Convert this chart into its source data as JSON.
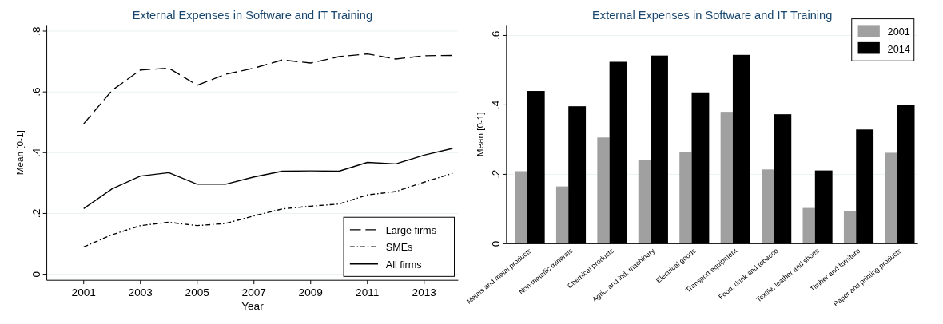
{
  "chart_data": [
    {
      "type": "line",
      "title": "External Expenses in Software and IT Training",
      "xlabel": "Year",
      "ylabel": "Mean [0-1]",
      "x": [
        2001,
        2002,
        2003,
        2004,
        2005,
        2006,
        2007,
        2008,
        2009,
        2010,
        2011,
        2012,
        2013,
        2014
      ],
      "xlim": [
        1999.7,
        2014.2
      ],
      "xticks": [
        2001,
        2003,
        2005,
        2007,
        2009,
        2011,
        2013
      ],
      "ylim": [
        -0.02,
        0.82
      ],
      "yticks": [
        {
          "value": 0,
          "label": "0"
        },
        {
          "value": 0.2,
          "label": ".2"
        },
        {
          "value": 0.4,
          "label": ".4"
        },
        {
          "value": 0.6,
          "label": ".6"
        },
        {
          "value": 0.8,
          "label": ".8"
        }
      ],
      "grid": "y",
      "legend": "bottom right",
      "series": [
        {
          "name": "Large firms",
          "color": "#000000",
          "line_style": "dashed",
          "values": [
            0.495,
            0.605,
            0.672,
            0.678,
            0.622,
            0.658,
            0.678,
            0.705,
            0.695,
            0.716,
            0.725,
            0.708,
            0.719,
            0.72
          ]
        },
        {
          "name": "SMEs",
          "color": "#000000",
          "line_style": "dashdot",
          "values": [
            0.09,
            0.13,
            0.16,
            0.171,
            0.16,
            0.167,
            0.192,
            0.215,
            0.224,
            0.231,
            0.261,
            0.272,
            0.303,
            0.332
          ]
        },
        {
          "name": "All firms",
          "color": "#000000",
          "line_style": "solid",
          "values": [
            0.216,
            0.281,
            0.323,
            0.334,
            0.296,
            0.296,
            0.32,
            0.339,
            0.34,
            0.339,
            0.368,
            0.363,
            0.392,
            0.414
          ]
        }
      ]
    },
    {
      "type": "bar",
      "title": "External Expenses in Software and IT Training",
      "ylabel": "Mean [0-1]",
      "categories": [
        "Metals and metal products",
        "Non-metallic minerals",
        "Chemical products",
        "Agric. and ind. machinery",
        "Electrical goods",
        "Transport equipment",
        "Food, drink and tobacco",
        "Textile, leather and shoes",
        "Timber and furniture",
        "Paper and printing products"
      ],
      "ylim": [
        0,
        0.63
      ],
      "yticks": [
        {
          "value": 0,
          "label": "0"
        },
        {
          "value": 0.2,
          "label": ".2"
        },
        {
          "value": 0.4,
          "label": ".4"
        },
        {
          "value": 0.6,
          "label": ".6"
        }
      ],
      "grid": "y",
      "legend": "top right",
      "series": [
        {
          "name": "2001",
          "color": "#a0a0a0",
          "values": [
            0.209,
            0.165,
            0.306,
            0.241,
            0.264,
            0.38,
            0.214,
            0.103,
            0.095,
            0.262
          ]
        },
        {
          "name": "2014",
          "color": "#000000",
          "values": [
            0.44,
            0.396,
            0.524,
            0.542,
            0.436,
            0.544,
            0.373,
            0.211,
            0.329,
            0.4
          ]
        }
      ]
    }
  ]
}
